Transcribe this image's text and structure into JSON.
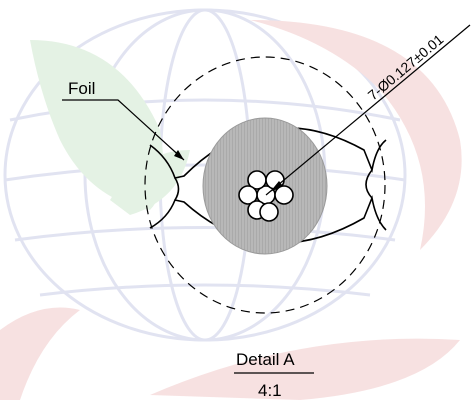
{
  "labels": {
    "foil": "Foil",
    "dimension": "7-Ø0.127±0.01",
    "detail_title": "Detail A",
    "detail_scale": "4:1"
  },
  "colors": {
    "line": "#000000",
    "core_fill": "#b8b8b8",
    "watermark_blue": "#c9cde6",
    "watermark_green": "#cfe8cf",
    "watermark_red": "#f1c9c9"
  },
  "strand_count": 7
}
